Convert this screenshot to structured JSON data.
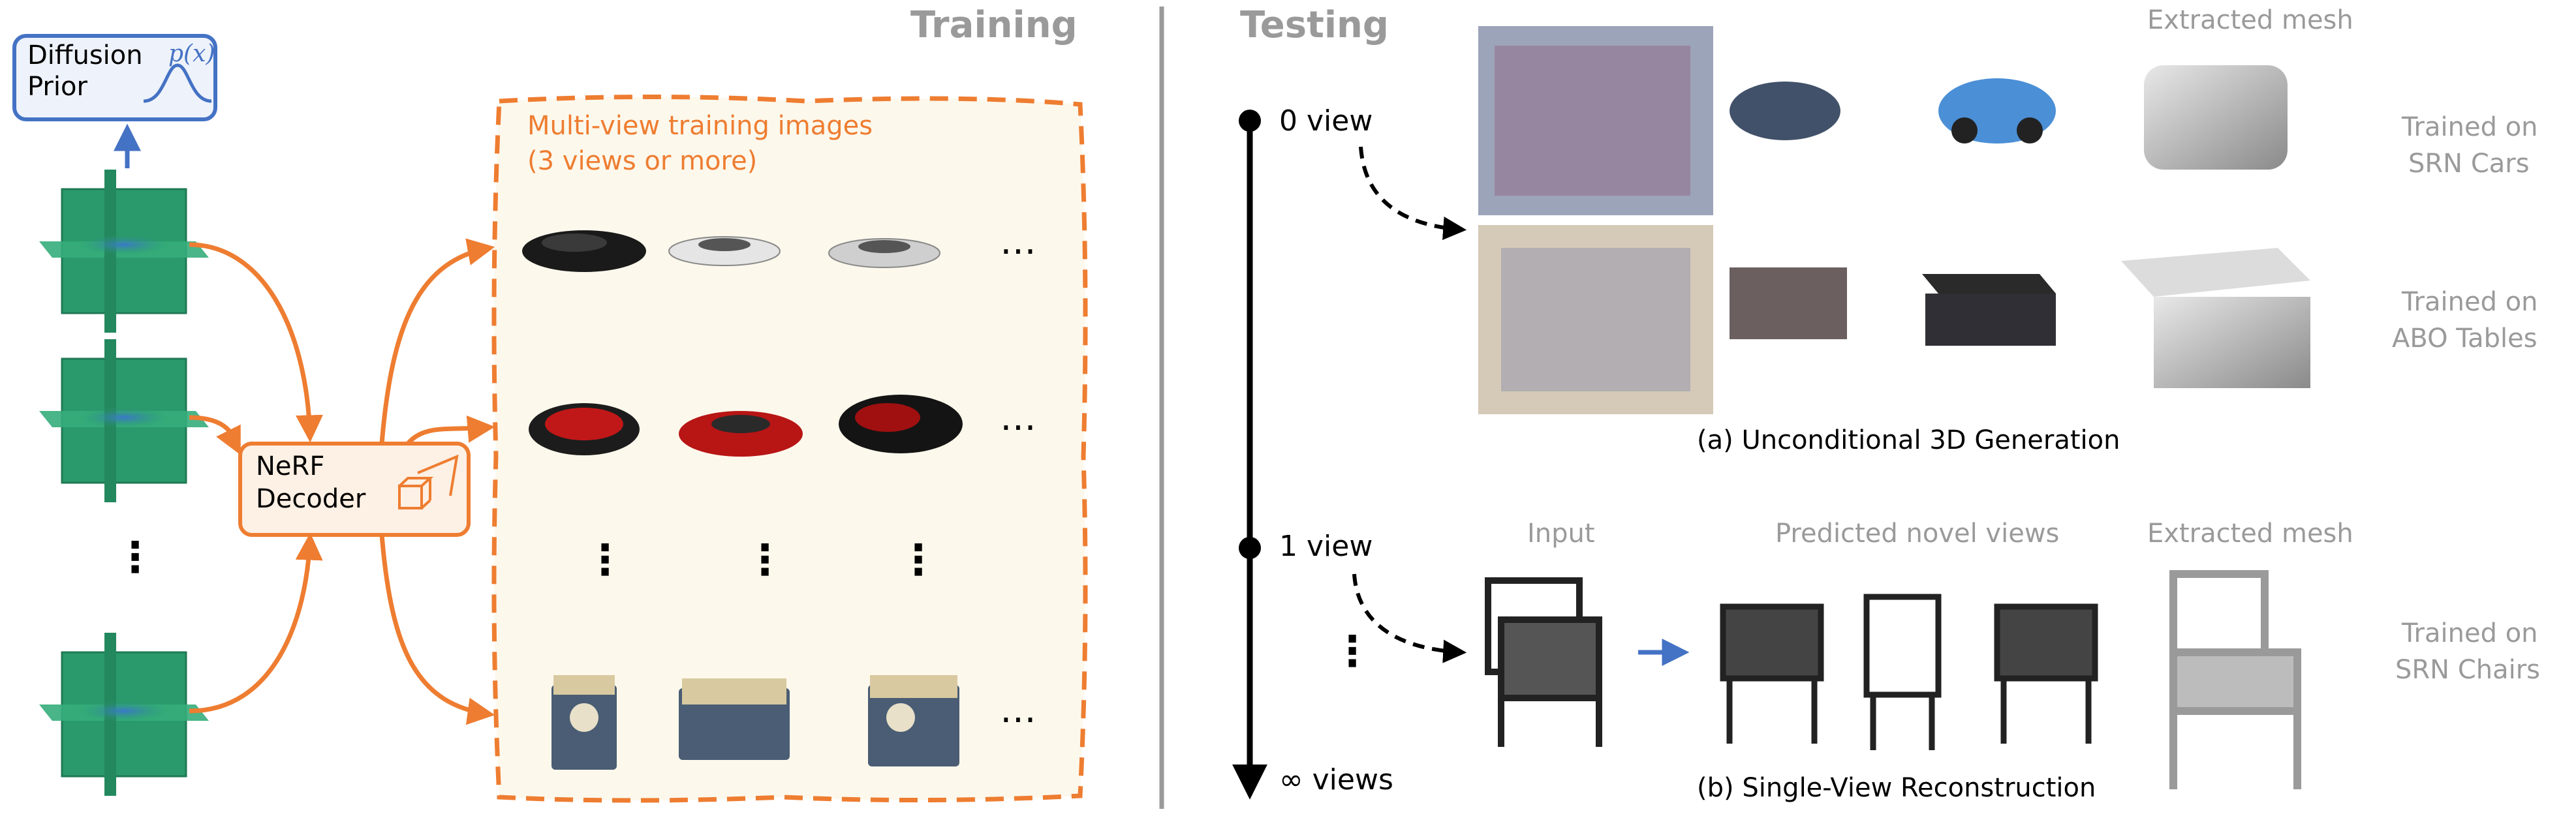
{
  "colors": {
    "orange": "#ee7d31",
    "blue": "#4472c4",
    "prior_fill": "#eef2fa",
    "training_area_fill": "#fdf8ec",
    "triplane_green": "#2a9a6c",
    "divider_grey": "#9a9a9a",
    "label_grey": "#9a9a9a"
  },
  "training": {
    "section_title": "Training",
    "prior_label_line1": "Diffusion",
    "prior_label_line2": "Prior",
    "prior_formula": "p(x)",
    "decoder_label_line1": "NeRF",
    "decoder_label_line2": "Decoder",
    "triplane_ellipsis": "⋮",
    "images_title_line1": "Multi-view training images",
    "images_title_line2": "(3 views or more)",
    "row_ellipsis": "⋯",
    "column_ellipsis": "⋮"
  },
  "testing": {
    "section_title": "Testing",
    "timeline": {
      "zero_view": "0 view",
      "one_view": "1 view",
      "middle_ellipsis": "⋮",
      "infinite_views": "∞ views"
    },
    "unconditional": {
      "extracted_mesh_label": "Extracted mesh",
      "cars_label_line1": "Trained on",
      "cars_label_line2": "SRN Cars",
      "tables_label_line1": "Trained on",
      "tables_label_line2": "ABO Tables",
      "caption": "(a) Unconditional 3D Generation"
    },
    "single_view": {
      "input_label": "Input",
      "novel_views_label": "Predicted novel views",
      "extracted_mesh_label": "Extracted mesh",
      "chairs_label_line1": "Trained on",
      "chairs_label_line2": "SRN Chairs",
      "caption": "(b) Single-View Reconstruction"
    }
  },
  "thumbnails": {
    "row1": [
      "black-car",
      "white-car",
      "silver-car"
    ],
    "row2": [
      "red-car",
      "red-car",
      "red-car"
    ],
    "row4": [
      "jeep",
      "jeep",
      "jeep"
    ]
  }
}
